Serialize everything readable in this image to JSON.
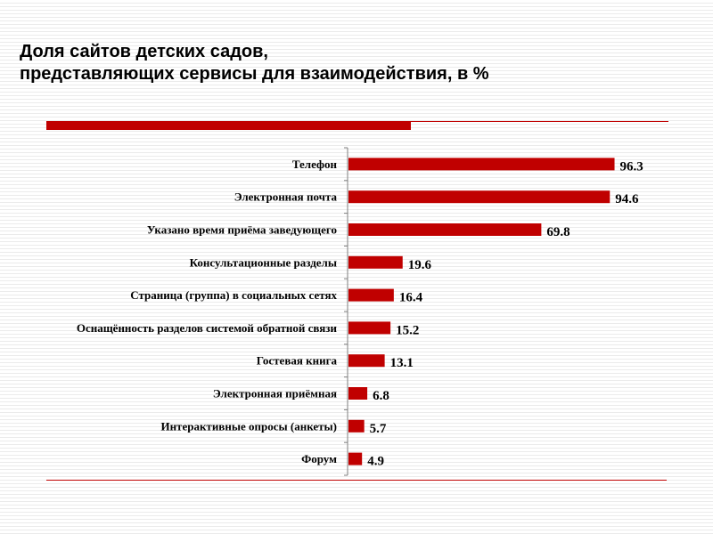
{
  "slide": {
    "title_line1": "Доля сайтов детских садов,",
    "title_line2": "представляющих сервисы для взаимодействия, в %"
  },
  "colors": {
    "accent": "#c00000",
    "bar": "#c00000",
    "axis": "#7f7f7f"
  },
  "chart_data": {
    "type": "bar",
    "orientation": "horizontal",
    "title": "",
    "xlabel": "",
    "ylabel": "",
    "xlim": [
      0,
      100
    ],
    "grid": false,
    "categories": [
      "Телефон",
      "Электронная почта",
      "Указано время приёма заведующего",
      "Консультационные разделы",
      "Страница (группа) в социальных сетях",
      "Оснащённость разделов системой обратной связи",
      "Гостевая книга",
      "Электронная приёмная",
      "Интерактивные опросы (анкеты)",
      "Форум"
    ],
    "values": [
      96.3,
      94.6,
      69.8,
      19.6,
      16.4,
      15.2,
      13.1,
      6.8,
      5.7,
      4.9
    ],
    "value_labels": [
      "96.3",
      "94.6",
      "69.8",
      "19.6",
      "16.4",
      "15.2",
      "13.1",
      "6.8",
      "5.7",
      "4.9"
    ]
  }
}
